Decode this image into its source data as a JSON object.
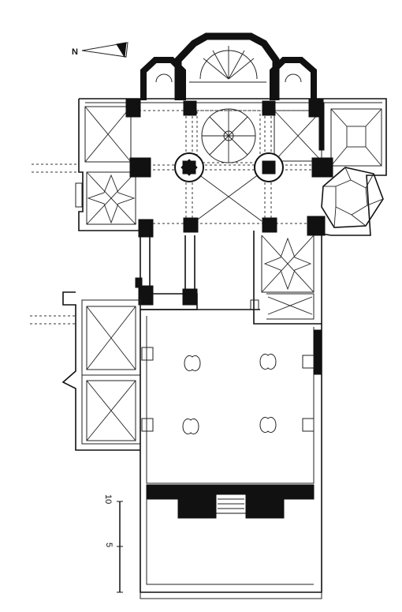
{
  "compass": {
    "label": "N"
  },
  "scale": {
    "tick_top": "10",
    "tick_mid": "5"
  }
}
